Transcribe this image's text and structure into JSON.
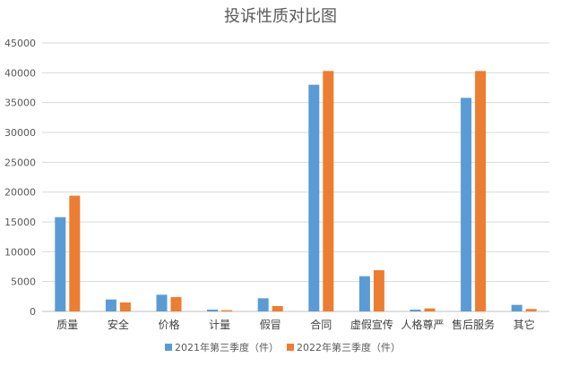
{
  "chart_data": {
    "type": "bar",
    "title": "投诉性质对比图",
    "categories": [
      "质量",
      "安全",
      "价格",
      "计量",
      "假冒",
      "合同",
      "虚假宣传",
      "人格尊严",
      "售后服务",
      "其它"
    ],
    "series": [
      {
        "name": "2021年第三季度（件）",
        "color": "#5B9BD5",
        "values": [
          15800,
          2000,
          2800,
          300,
          2200,
          38000,
          5900,
          300,
          35800,
          1100
        ]
      },
      {
        "name": "2022年第三季度（件）",
        "color": "#ED7D31",
        "values": [
          19400,
          1500,
          2400,
          200,
          900,
          40300,
          6900,
          500,
          40300,
          400
        ]
      }
    ],
    "ylim": [
      0,
      45000
    ],
    "yticks": [
      0,
      5000,
      10000,
      15000,
      20000,
      25000,
      30000,
      35000,
      40000,
      45000
    ],
    "grid": true,
    "legend": "bottom"
  }
}
